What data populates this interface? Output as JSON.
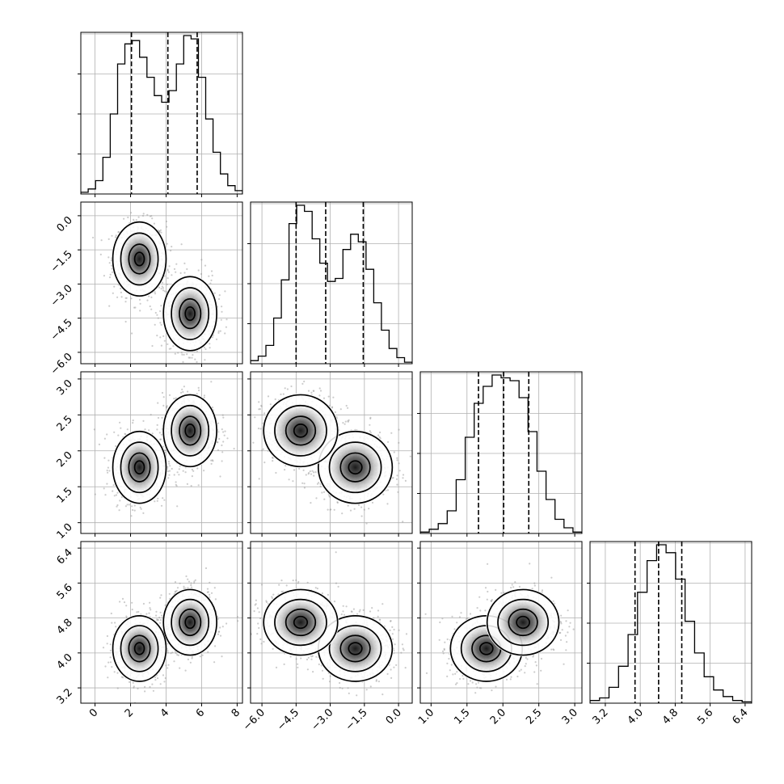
{
  "chart_data": {
    "type": "corner",
    "grid": true,
    "quantile_lines": "dashed",
    "parameters": [
      {
        "range": [
          -0.8,
          8.3
        ],
        "ticks": [
          0,
          2,
          4,
          6,
          8
        ],
        "tick_labels": [
          "0",
          "2",
          "4",
          "6",
          "8"
        ],
        "quantiles": [
          2.05,
          4.1,
          5.75
        ],
        "hist": [
          1,
          3,
          8,
          22,
          48,
          78,
          90,
          92,
          82,
          70,
          59,
          55,
          62,
          78,
          95,
          93,
          70,
          45,
          25,
          12,
          5,
          2
        ]
      },
      {
        "range": [
          -6.5,
          0.6
        ],
        "ticks": [
          -6.0,
          -4.5,
          -3.0,
          -1.5,
          0.0
        ],
        "tick_labels": [
          "−6.0",
          "−4.5",
          "−3.0",
          "−1.5",
          "0.0"
        ],
        "quantiles": [
          -4.5,
          -3.2,
          -1.55
        ],
        "hist": [
          2,
          5,
          12,
          30,
          55,
          92,
          104,
          100,
          82,
          66,
          54,
          56,
          75,
          85,
          80,
          62,
          40,
          22,
          10,
          4,
          1
        ]
      },
      {
        "range": [
          0.85,
          3.1
        ],
        "ticks": [
          1.0,
          1.5,
          2.0,
          2.5,
          3.0
        ],
        "tick_labels": [
          "1.0",
          "1.5",
          "2.0",
          "2.5",
          "3.0"
        ],
        "quantiles": [
          1.66,
          2.01,
          2.36
        ],
        "hist": [
          1,
          3,
          7,
          16,
          38,
          68,
          92,
          104,
          112,
          110,
          108,
          96,
          72,
          44,
          24,
          10,
          4,
          1
        ]
      },
      {
        "range": [
          2.85,
          6.55
        ],
        "ticks": [
          3.2,
          4.0,
          4.8,
          5.6,
          6.4
        ],
        "tick_labels": [
          "3.2",
          "4.0",
          "4.8",
          "5.6",
          "6.4"
        ],
        "quantiles": [
          3.88,
          4.42,
          4.95
        ],
        "hist": [
          2,
          4,
          12,
          28,
          52,
          84,
          108,
          120,
          114,
          94,
          62,
          38,
          20,
          10,
          5,
          2,
          1
        ]
      }
    ],
    "modes": [
      {
        "mean": [
          2.5,
          -1.9,
          1.77,
          4.1
        ],
        "sd": [
          0.6,
          0.65,
          0.2,
          0.3
        ]
      },
      {
        "mean": [
          5.35,
          -4.3,
          2.28,
          4.7
        ],
        "sd": [
          0.6,
          0.65,
          0.2,
          0.3
        ]
      }
    ]
  }
}
